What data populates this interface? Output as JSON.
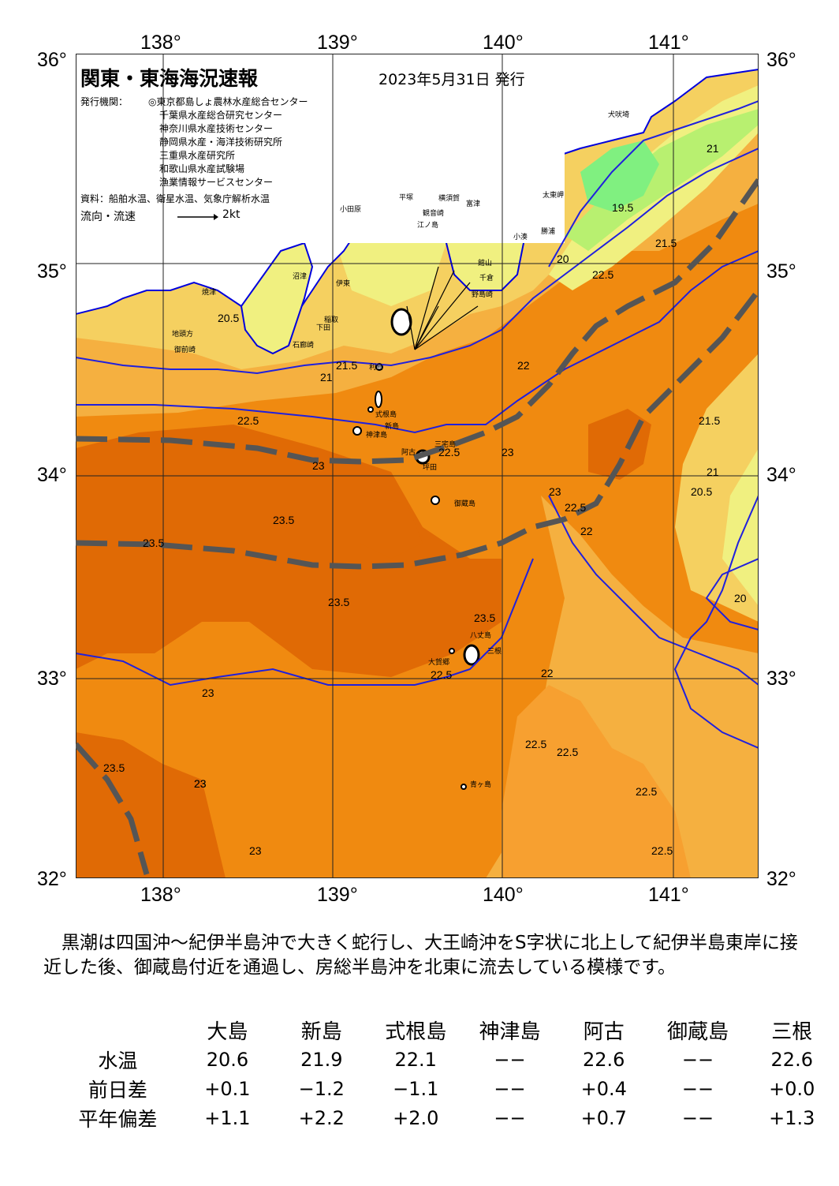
{
  "header": {
    "title": "関東・東海海況速報",
    "date": "2023年5月31日 発行",
    "issuer_label": "発行機関：",
    "issuers": [
      "◎東京都島しょ農林水産総合センター",
      "千葉県水産総合研究センター",
      "神奈川県水産技術センター",
      "静岡県水産・海洋技術研究所",
      "三重県水産研究所",
      "和歌山県水産試験場",
      "漁業情報サービスセンター"
    ],
    "source": "資料：船舶水温、衛星水温、気象庁解析水温",
    "flow_label": "流向・流速",
    "flow_scale": "2kt"
  },
  "map": {
    "lon_ticks": [
      "138°",
      "139°",
      "140°",
      "141°"
    ],
    "lat_ticks": [
      "36°",
      "35°",
      "34°",
      "33°",
      "32°"
    ],
    "colors": {
      "t18": "#80f080",
      "t19": "#b8f070",
      "t20": "#f0f080",
      "t21": "#f5d060",
      "t22": "#f5b040",
      "t23": "#f08a10",
      "t24": "#e06a05",
      "coast": "#0000dd",
      "kuroshio": "#555555",
      "land": "#ffffff"
    },
    "place_labels": [
      "犬吠埼",
      "太東岬",
      "勝浦",
      "小湊",
      "館山",
      "千倉",
      "野島崎",
      "富津",
      "横須賀",
      "観音崎",
      "平塚",
      "小田原",
      "江ノ島",
      "沼津",
      "伊東",
      "稲取",
      "下田",
      "石廊崎",
      "焼津",
      "御前崎",
      "地頭方",
      "新島",
      "式根島",
      "神津島",
      "阿古",
      "坪田",
      "三宅島",
      "御蔵島",
      "八丈島",
      "三根",
      "大賀郷",
      "青ヶ島",
      "利島"
    ],
    "isotherm_labels": [
      "20.5",
      "21",
      "21.5",
      "22",
      "22.5",
      "23",
      "23.5",
      "19.5",
      "20",
      "21",
      "21.5",
      "22.5",
      "22.5",
      "23",
      "23",
      "22.5",
      "22",
      "21.5",
      "21",
      "20.5",
      "20",
      "23.5",
      "23.5",
      "23.5",
      "23",
      "23",
      "22.5",
      "22",
      "22.5",
      "22.5",
      "22.5",
      "22.5",
      "23",
      "23.5",
      "23"
    ]
  },
  "description": "黒潮は四国沖〜紀伊半島沖で大きく蛇行し、大王崎沖をS字状に北上して紀伊半島東岸に接近した後、御蔵島付近を通過し、房総半島沖を北東に流去している模様です。",
  "table": {
    "columns": [
      "大島",
      "新島",
      "式根島",
      "神津島",
      "阿古",
      "御蔵島",
      "三根"
    ],
    "rows": [
      {
        "label": "水温",
        "values": [
          "20.6",
          "21.9",
          "22.1",
          "−−",
          "22.6",
          "−−",
          "22.6"
        ]
      },
      {
        "label": "前日差",
        "values": [
          "+0.1",
          "−1.2",
          "−1.1",
          "−−",
          "+0.4",
          "−−",
          "+0.0"
        ]
      },
      {
        "label": "平年偏差",
        "values": [
          "+1.1",
          "+2.2",
          "+2.0",
          "−−",
          "+0.7",
          "−−",
          "+1.3"
        ]
      }
    ]
  }
}
